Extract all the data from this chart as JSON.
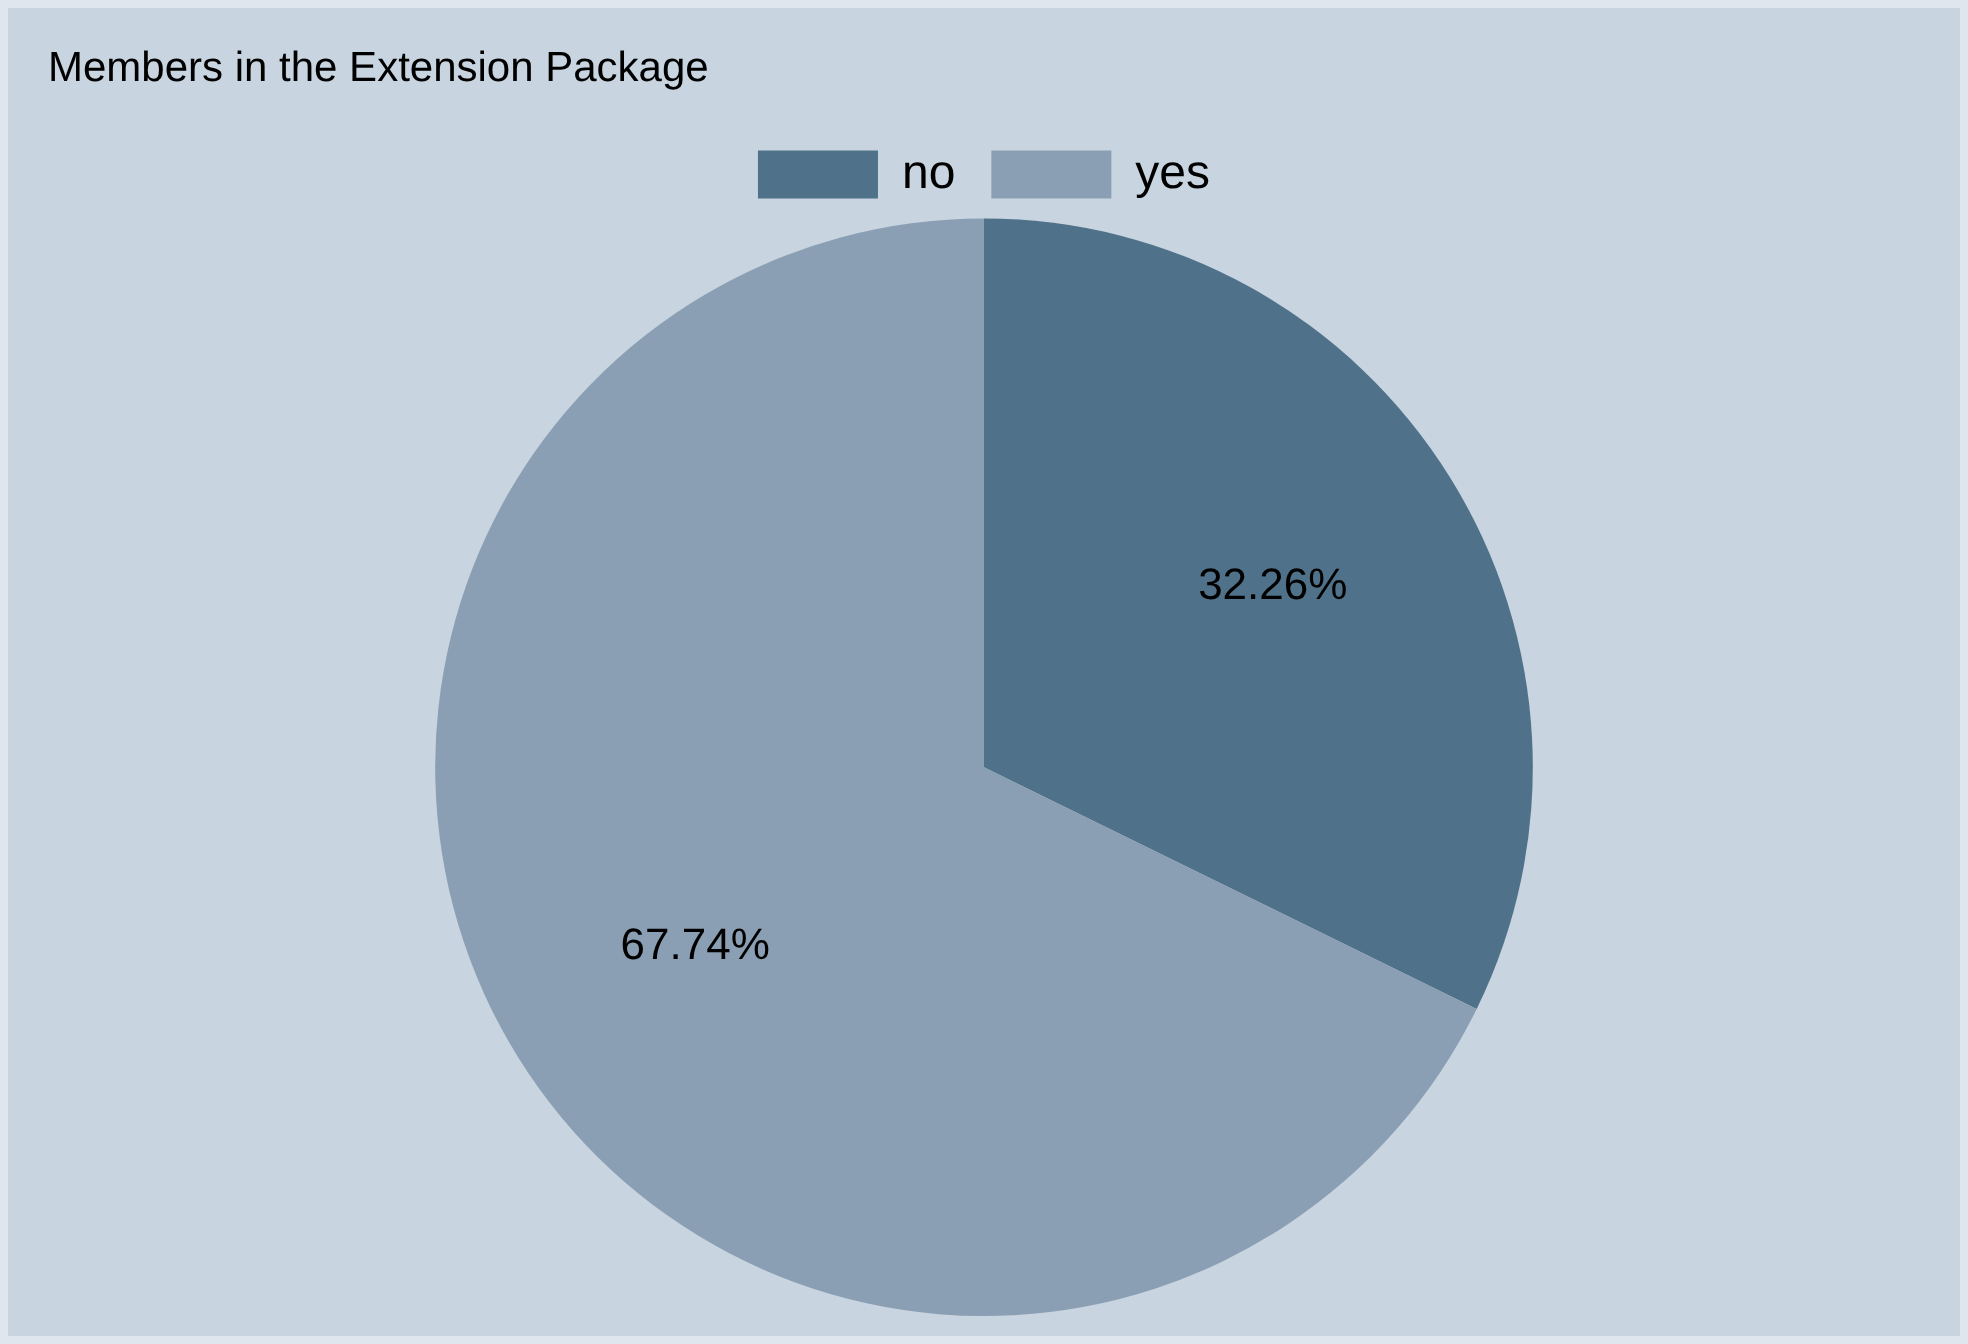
{
  "chart_data": {
    "type": "pie",
    "title": "Members in the Extension Package",
    "categories": [
      "no",
      "yes"
    ],
    "values": [
      32.26,
      67.74
    ],
    "colors": [
      "#4f7189",
      "#8a9fb3"
    ],
    "value_labels": [
      "32.26%",
      "67.74%"
    ],
    "legend": "top"
  }
}
